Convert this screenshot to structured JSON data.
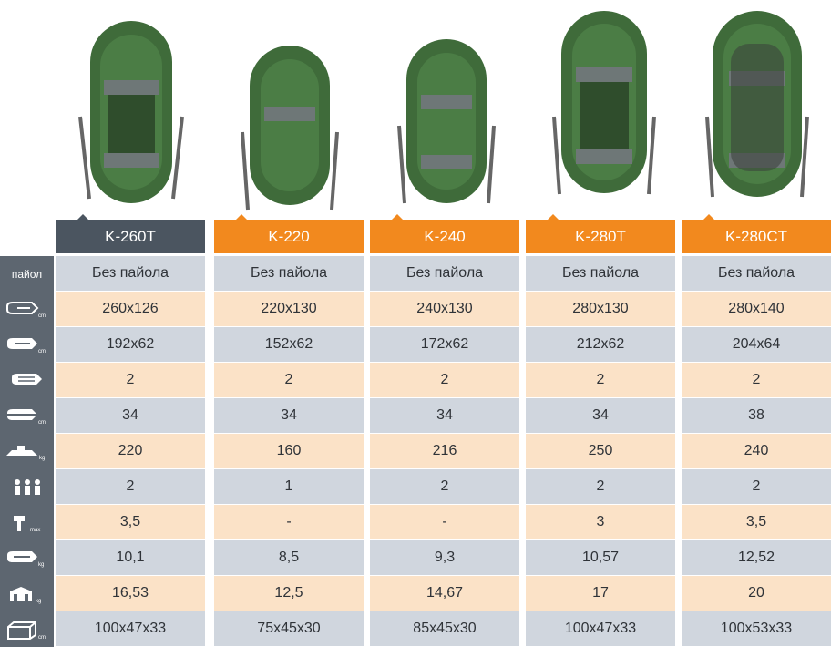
{
  "models": [
    {
      "name": "K-260T",
      "active": true
    },
    {
      "name": "K-220",
      "active": false
    },
    {
      "name": "K-240",
      "active": false
    },
    {
      "name": "K-280T",
      "active": false
    },
    {
      "name": "K-280CT",
      "active": false
    }
  ],
  "rows": [
    {
      "label": "пайол",
      "icon": "floor-label",
      "values": [
        "Без пайола",
        "Без пайола",
        "Без пайола",
        "Без пайола",
        "Без пайола"
      ]
    },
    {
      "label": "",
      "icon": "boat-outer-size-icon",
      "values": [
        "260x126",
        "220x130",
        "240x130",
        "280x130",
        "280x140"
      ]
    },
    {
      "label": "",
      "icon": "boat-inner-size-icon",
      "values": [
        "192x62",
        "152x62",
        "172x62",
        "212x62",
        "204x64"
      ]
    },
    {
      "label": "",
      "icon": "boat-chambers-icon",
      "values": [
        "2",
        "2",
        "2",
        "2",
        "2"
      ]
    },
    {
      "label": "",
      "icon": "tube-diameter-icon",
      "values": [
        "34",
        "34",
        "34",
        "34",
        "38"
      ]
    },
    {
      "label": "",
      "icon": "load-capacity-icon",
      "values": [
        "220",
        "160",
        "216",
        "250",
        "240"
      ]
    },
    {
      "label": "",
      "icon": "passengers-icon",
      "values": [
        "2",
        "1",
        "2",
        "2",
        "2"
      ]
    },
    {
      "label": "",
      "icon": "motor-power-icon",
      "values": [
        "3,5",
        "-",
        "-",
        "3",
        "3,5"
      ]
    },
    {
      "label": "",
      "icon": "boat-weight-icon",
      "values": [
        "10,1",
        "8,5",
        "9,3",
        "10,57",
        "12,52"
      ]
    },
    {
      "label": "",
      "icon": "package-weight-icon",
      "values": [
        "16,53",
        "12,5",
        "14,67",
        "17",
        "20"
      ]
    },
    {
      "label": "",
      "icon": "package-size-icon",
      "values": [
        "100x47x33",
        "75x45x30",
        "85x45x30",
        "100x47x33",
        "100x53x33"
      ]
    }
  ],
  "icon_units": {
    "boat-outer-size-icon": "cm",
    "boat-inner-size-icon": "cm",
    "tube-diameter-icon": "cm",
    "load-capacity-icon": "kg",
    "motor-power-icon": "max",
    "boat-weight-icon": "kg",
    "package-weight-icon": "kg",
    "package-size-icon": "cm"
  },
  "colors": {
    "active_tab": "#4b5560",
    "inactive_tab": "#f2891e",
    "row_grey": "#d0d6de",
    "row_peach": "#fbe2c7",
    "label_column": "#5d6670",
    "boat_green": "#3f6b3a"
  }
}
